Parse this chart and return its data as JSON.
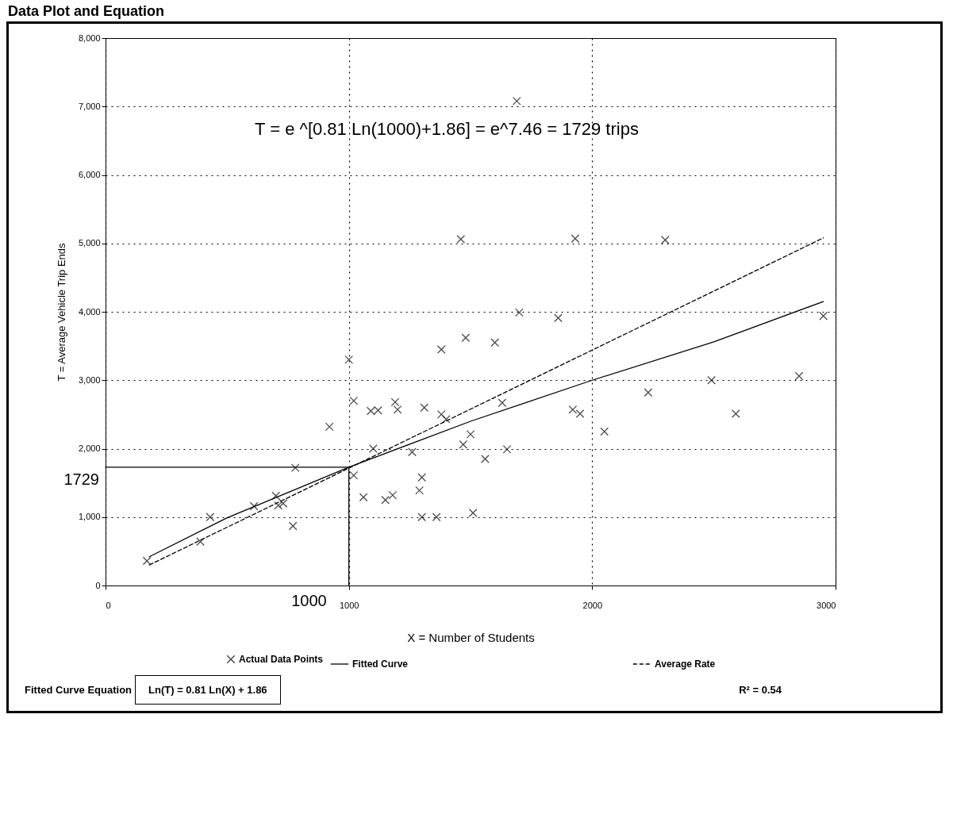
{
  "chart_data": {
    "type": "scatter",
    "title": "Data Plot and Equation",
    "xlabel": "X = Number of Students",
    "ylabel": "T = Average Vehicle Trip Ends",
    "xlim": [
      0,
      3000
    ],
    "xticks": [
      0,
      1000,
      2000,
      3000
    ],
    "ylim": [
      0,
      8000
    ],
    "yticks": [
      0,
      {
        "value": 1000,
        "label": "1,000"
      },
      {
        "value": 2000,
        "label": "2,000"
      },
      {
        "value": 3000,
        "label": "3,000"
      },
      {
        "value": 4000,
        "label": "4,000"
      },
      {
        "value": 5000,
        "label": "5,000"
      },
      {
        "value": 6000,
        "label": "6,000"
      },
      {
        "value": 7000,
        "label": "7,000"
      },
      {
        "value": 8000,
        "label": "8,000"
      }
    ],
    "grid": true,
    "legend": "bottom",
    "series": [
      {
        "name": "Actual Data Points",
        "marker": "cross",
        "color": "#000000",
        "x": [
          170,
          390,
          430,
          610,
          700,
          710,
          730,
          770,
          780,
          920,
          1000,
          1020,
          1020,
          1060,
          1090,
          1100,
          1120,
          1150,
          1180,
          1190,
          1200,
          1260,
          1290,
          1300,
          1300,
          1310,
          1360,
          1380,
          1380,
          1400,
          1460,
          1470,
          1480,
          1500,
          1510,
          1560,
          1600,
          1630,
          1650,
          1690,
          1700,
          1860,
          1920,
          1930,
          1950,
          2050,
          2230,
          2300,
          2490,
          2590,
          2850,
          2950
        ],
        "values": [
          360,
          640,
          1000,
          1160,
          1310,
          1170,
          1200,
          870,
          1720,
          2320,
          3300,
          2700,
          1610,
          1290,
          2550,
          2000,
          2560,
          1250,
          1320,
          2680,
          2570,
          1950,
          1390,
          1000,
          1580,
          2600,
          1000,
          2500,
          3450,
          2430,
          5060,
          2060,
          3620,
          2210,
          1060,
          1850,
          3550,
          2670,
          1990,
          7080,
          3990,
          3910,
          2570,
          5070,
          2510,
          2250,
          2820,
          5050,
          3000,
          2510,
          3060,
          3940
        ]
      },
      {
        "name": "Fitted Curve",
        "type": "line",
        "line_style": "solid",
        "color": "#000000",
        "x": [
          180,
          500,
          1000,
          1500,
          2000,
          2500,
          2950
        ],
        "values": [
          420,
          990,
          1730,
          2400,
          3000,
          3560,
          4150
        ]
      },
      {
        "name": "Average Rate",
        "type": "line",
        "line_style": "dashed",
        "color": "#000000",
        "x": [
          180,
          2950
        ],
        "values": [
          300,
          5080
        ]
      },
      {
        "type": "line",
        "line_style": "solid",
        "color": "#000000",
        "x": [
          0,
          1000,
          1000
        ],
        "values": [
          1729,
          1729,
          0
        ]
      }
    ],
    "annotations": [
      "T = e ^[0.81 Ln(1000)+1.86] = e^7.46 = 1729 trips",
      {
        "text": "1729",
        "x": 0,
        "y": 1729
      },
      {
        "text": "1000",
        "x": 1000,
        "y": 0
      },
      "Fitted Curve Equation",
      "Ln(T) = 0.81 Ln(X) + 1.86",
      "R² = 0.54"
    ]
  }
}
